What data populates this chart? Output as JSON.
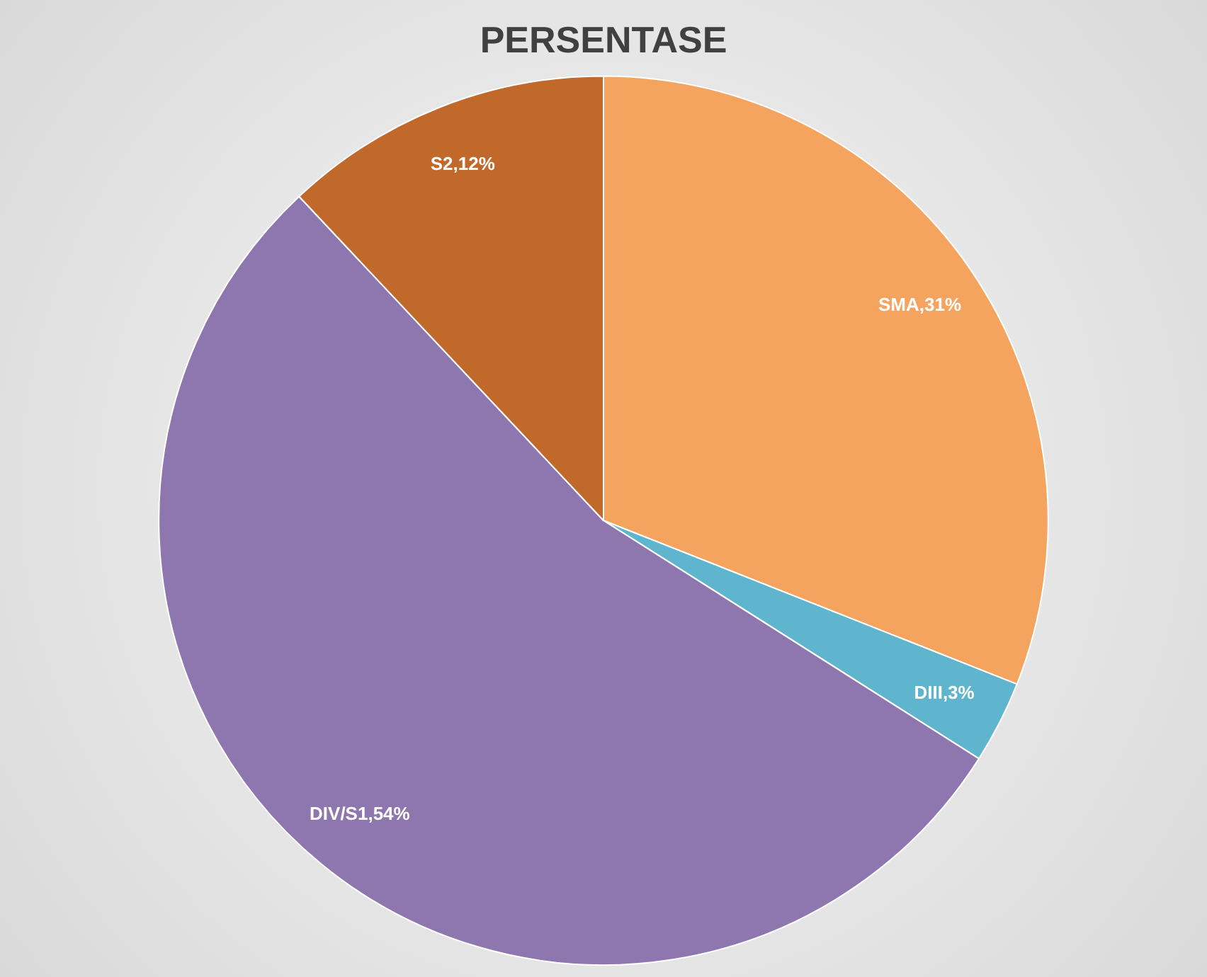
{
  "chart_data": {
    "type": "pie",
    "title": "PERSENTASE",
    "categories": [
      "SMA",
      "DIII",
      "DIV/S1",
      "S2"
    ],
    "values": [
      31,
      3,
      54,
      12
    ],
    "colors": [
      "#f5a460",
      "#5fb5cd",
      "#8e76ae",
      "#c0692b"
    ],
    "value_labels": [
      ",31%",
      ",3%",
      ",54%",
      ",12%"
    ],
    "legend": false
  }
}
